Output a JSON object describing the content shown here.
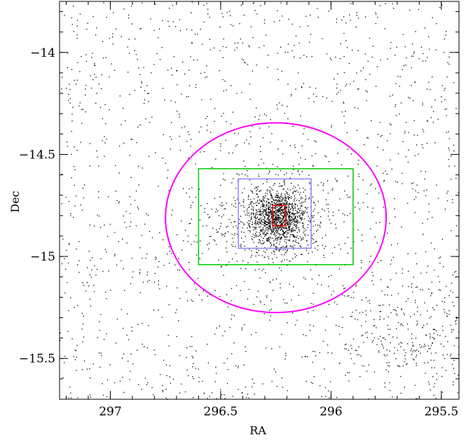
{
  "chart_data": {
    "type": "scatter",
    "title": "",
    "xlabel": "RA",
    "ylabel": "Dec",
    "xlim": [
      297.23,
      295.42
    ],
    "ylim": [
      -15.7,
      -13.75
    ],
    "x_reversed": true,
    "grid": false,
    "legend": "none",
    "xticks": [
      {
        "value": 297,
        "label": "297"
      },
      {
        "value": 296.5,
        "label": "296.5"
      },
      {
        "value": 296,
        "label": "296"
      },
      {
        "value": 295.5,
        "label": "295.5"
      }
    ],
    "yticks": [
      {
        "value": -14,
        "label": "−14"
      },
      {
        "value": -14.5,
        "label": "−14.5"
      },
      {
        "value": -15,
        "label": "−15"
      },
      {
        "value": -15.5,
        "label": "−15.5"
      }
    ],
    "x_minor_step": 0.1,
    "y_minor_step": 0.1,
    "points_color": "#000000",
    "point_groups": [
      {
        "kind": "uniform",
        "count": 1500,
        "ra": [
          295.42,
          297.23
        ],
        "dec": [
          -15.7,
          -13.75
        ]
      },
      {
        "kind": "gaussian",
        "count": 1100,
        "center": [
          296.24,
          -14.81
        ],
        "sigma": [
          0.06,
          0.065
        ]
      },
      {
        "kind": "gaussian",
        "count": 450,
        "center": [
          296.24,
          -14.81
        ],
        "sigma": [
          0.15,
          0.14
        ]
      },
      {
        "kind": "gaussian",
        "count": 300,
        "center": [
          295.6,
          -15.35
        ],
        "sigma": [
          0.2,
          0.14
        ]
      }
    ],
    "regions": [
      {
        "name": "ellipse",
        "shape": "ellipse",
        "center": [
          296.25,
          -14.81
        ],
        "radius": [
          0.5,
          0.465
        ],
        "color": "#ff00ff"
      },
      {
        "name": "green-box",
        "shape": "rect",
        "ra": [
          295.9,
          296.6
        ],
        "dec": [
          -15.04,
          -14.57
        ],
        "color": "#00cc00"
      },
      {
        "name": "blue-box",
        "shape": "rect",
        "ra": [
          296.09,
          296.42
        ],
        "dec": [
          -14.96,
          -14.62
        ],
        "color": "#8888ff"
      },
      {
        "name": "red-box",
        "shape": "rect",
        "ra": [
          296.205,
          296.265
        ],
        "dec": [
          -14.85,
          -14.75
        ],
        "color": "#ff0000"
      }
    ]
  }
}
